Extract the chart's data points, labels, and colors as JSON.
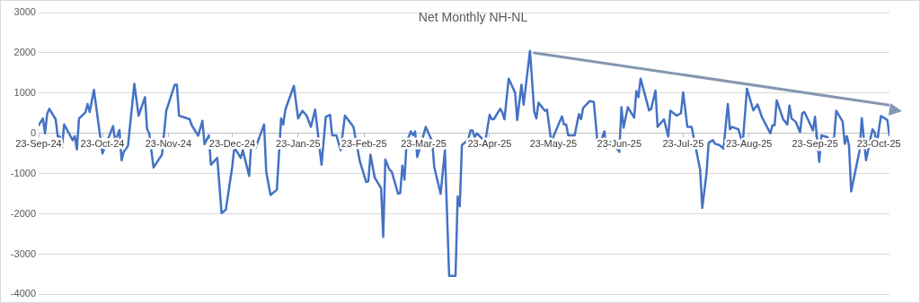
{
  "chart_data": {
    "type": "line",
    "title": "Net Monthly NH-NL",
    "x": [
      "2024-09-23",
      "2024-09-25",
      "2024-09-26",
      "2024-09-27",
      "2024-09-28",
      "2024-10-01",
      "2024-10-02",
      "2024-10-03",
      "2024-10-04",
      "2024-10-05",
      "2024-10-09",
      "2024-10-10",
      "2024-10-11",
      "2024-10-12",
      "2024-10-15",
      "2024-10-16",
      "2024-10-17",
      "2024-10-19",
      "2024-10-23",
      "2024-10-28",
      "2024-10-29",
      "2024-10-31",
      "2024-11-01",
      "2024-11-02",
      "2024-11-04",
      "2024-11-07",
      "2024-11-09",
      "2024-11-12",
      "2024-11-13",
      "2024-11-14",
      "2024-11-16",
      "2024-11-20",
      "2024-11-22",
      "2024-11-26",
      "2024-11-27",
      "2024-11-28",
      "2024-12-03",
      "2024-12-04",
      "2024-12-07",
      "2024-12-09",
      "2024-12-10",
      "2024-12-12",
      "2024-12-13",
      "2024-12-16",
      "2024-12-18",
      "2024-12-20",
      "2024-12-23",
      "2024-12-24",
      "2024-12-27",
      "2024-12-28",
      "2024-12-31",
      "2025-01-01",
      "2025-01-03",
      "2025-01-07",
      "2025-01-08",
      "2025-01-10",
      "2025-01-13",
      "2025-01-15",
      "2025-01-16",
      "2025-01-17",
      "2025-01-21",
      "2025-01-23",
      "2025-01-25",
      "2025-01-27",
      "2025-01-29",
      "2025-01-31",
      "2025-02-03",
      "2025-02-05",
      "2025-02-07",
      "2025-02-08",
      "2025-02-10",
      "2025-02-12",
      "2025-02-14",
      "2025-02-18",
      "2025-02-21",
      "2025-02-24",
      "2025-02-25",
      "2025-02-26",
      "2025-02-28",
      "2025-03-03",
      "2025-03-04",
      "2025-03-05",
      "2025-03-07",
      "2025-03-08",
      "2025-03-11",
      "2025-03-12",
      "2025-03-13",
      "2025-03-14",
      "2025-03-15",
      "2025-03-17",
      "2025-03-18",
      "2025-03-19",
      "2025-03-20",
      "2025-03-24",
      "2025-03-27",
      "2025-03-28",
      "2025-03-31",
      "2025-04-02",
      "2025-04-04",
      "2025-04-07",
      "2025-04-08",
      "2025-04-09",
      "2025-04-10",
      "2025-04-13",
      "2025-04-14",
      "2025-04-15",
      "2025-04-16",
      "2025-04-17",
      "2025-04-21",
      "2025-04-23",
      "2025-04-24",
      "2025-04-25",
      "2025-04-28",
      "2025-04-29",
      "2025-04-30",
      "2025-05-02",
      "2025-05-05",
      "2025-05-06",
      "2025-05-08",
      "2025-05-09",
      "2025-05-12",
      "2025-05-14",
      "2025-05-15",
      "2025-05-16",
      "2025-05-19",
      "2025-05-20",
      "2025-05-22",
      "2025-05-27",
      "2025-05-28",
      "2025-05-29",
      "2025-05-30",
      "2025-06-02",
      "2025-06-04",
      "2025-06-05",
      "2025-06-06",
      "2025-06-09",
      "2025-06-11",
      "2025-06-13",
      "2025-06-16",
      "2025-06-17",
      "2025-06-18",
      "2025-06-20",
      "2025-06-23",
      "2025-06-24",
      "2025-06-25",
      "2025-06-27",
      "2025-06-30",
      "2025-07-01",
      "2025-07-02",
      "2025-07-03",
      "2025-07-07",
      "2025-07-08",
      "2025-07-10",
      "2025-07-11",
      "2025-07-14",
      "2025-07-16",
      "2025-07-17",
      "2025-07-20",
      "2025-07-22",
      "2025-07-23",
      "2025-07-25",
      "2025-07-27",
      "2025-07-31",
      "2025-08-01",
      "2025-08-03",
      "2025-08-04",
      "2025-08-06",
      "2025-08-07",
      "2025-08-09",
      "2025-08-11",
      "2025-08-13",
      "2025-08-14",
      "2025-08-15",
      "2025-08-18",
      "2025-08-20",
      "2025-08-22",
      "2025-08-25",
      "2025-08-27",
      "2025-08-29",
      "2025-09-02",
      "2025-09-03",
      "2025-09-04",
      "2025-09-05",
      "2025-09-08",
      "2025-09-10",
      "2025-09-11",
      "2025-09-12",
      "2025-09-14",
      "2025-09-16",
      "2025-09-17",
      "2025-09-18",
      "2025-09-20",
      "2025-09-22",
      "2025-09-23",
      "2025-09-25",
      "2025-09-26",
      "2025-09-29",
      "2025-09-30",
      "2025-10-01",
      "2025-10-02",
      "2025-10-03",
      "2025-10-06",
      "2025-10-07",
      "2025-10-08",
      "2025-10-09",
      "2025-10-10",
      "2025-10-14",
      "2025-10-15",
      "2025-10-17",
      "2025-10-20",
      "2025-10-21",
      "2025-10-22",
      "2025-10-24",
      "2025-10-27",
      "2025-10-28"
    ],
    "series": [
      {
        "color": "#4472c4",
        "values": [
          200,
          370,
          0,
          480,
          610,
          350,
          -80,
          -80,
          -350,
          220,
          -170,
          -70,
          -400,
          370,
          520,
          730,
          530,
          1080,
          -500,
          180,
          -200,
          80,
          -670,
          -460,
          -310,
          1230,
          440,
          900,
          100,
          0,
          -850,
          -530,
          560,
          1210,
          1210,
          440,
          350,
          200,
          -60,
          310,
          -270,
          -50,
          -780,
          -610,
          -1980,
          -1900,
          -840,
          -350,
          -610,
          -420,
          -1060,
          -200,
          -360,
          220,
          -950,
          -1530,
          -1400,
          370,
          220,
          590,
          1180,
          370,
          560,
          440,
          160,
          590,
          -780,
          410,
          460,
          -50,
          -50,
          -420,
          440,
          160,
          -690,
          -1210,
          -1190,
          -530,
          -1100,
          -1360,
          -2570,
          -650,
          -910,
          -950,
          -1500,
          -1480,
          -800,
          -1150,
          -220,
          50,
          -50,
          50,
          -590,
          160,
          -200,
          -840,
          -1500,
          -420,
          -3540,
          -3540,
          -1570,
          -1810,
          -290,
          -160,
          70,
          70,
          -100,
          0,
          -210,
          460,
          350,
          350,
          610,
          520,
          350,
          1360,
          1010,
          330,
          1210,
          710,
          2050,
          540,
          370,
          760,
          560,
          590,
          -210,
          420,
          220,
          220,
          -50,
          -50,
          480,
          350,
          630,
          800,
          780,
          -380,
          50,
          -380,
          -200,
          -230,
          -460,
          650,
          140,
          650,
          390,
          1050,
          900,
          1360,
          570,
          610,
          1060,
          160,
          350,
          -80,
          560,
          440,
          500,
          1020,
          160,
          160,
          -910,
          -1850,
          -990,
          -230,
          -170,
          -260,
          -290,
          -380,
          730,
          100,
          160,
          100,
          -260,
          1110,
          570,
          720,
          410,
          0,
          200,
          200,
          820,
          350,
          220,
          690,
          370,
          280,
          30,
          500,
          530,
          310,
          70,
          410,
          -710,
          -50,
          -100,
          -380,
          -140,
          -100,
          560,
          290,
          -260,
          -70,
          -310,
          -1440,
          -410,
          380,
          -670,
          100,
          30,
          -250,
          430,
          330,
          -50
        ]
      },
      {
        "type": "line",
        "color": "#8497b0",
        "x": [
          "2025-05-14",
          "2025-10-28"
        ],
        "values": [
          2000,
          700
        ]
      }
    ],
    "xlim": [
      "2024-09-23",
      "2025-10-28"
    ],
    "xticks": [
      {
        "value": "2024-09-23",
        "label": "23-Sep-24"
      },
      {
        "value": "2024-10-23",
        "label": "23-Oct-24"
      },
      {
        "value": "2024-11-23",
        "label": "23-Nov-24"
      },
      {
        "value": "2024-12-23",
        "label": "23-Dec-24"
      },
      {
        "value": "2025-01-23",
        "label": "23-Jan-25"
      },
      {
        "value": "2025-02-23",
        "label": "23-Feb-25"
      },
      {
        "value": "2025-03-23",
        "label": "23-Mar-25"
      },
      {
        "value": "2025-04-23",
        "label": "23-Apr-25"
      },
      {
        "value": "2025-05-23",
        "label": "23-May-25"
      },
      {
        "value": "2025-06-23",
        "label": "23-Jun-25"
      },
      {
        "value": "2025-07-23",
        "label": "23-Jul-25"
      },
      {
        "value": "2025-08-23",
        "label": "23-Aug-25"
      },
      {
        "value": "2025-09-23",
        "label": "23-Sep-25"
      },
      {
        "value": "2025-10-23",
        "label": "23-Oct-25"
      }
    ],
    "ylim": [
      -4000,
      3000
    ],
    "yticks": [
      -4000,
      -3000,
      -2000,
      -1000,
      0,
      1000,
      2000,
      3000
    ],
    "grid": "y",
    "legend": false,
    "marker": "none",
    "line_style": "solid"
  }
}
